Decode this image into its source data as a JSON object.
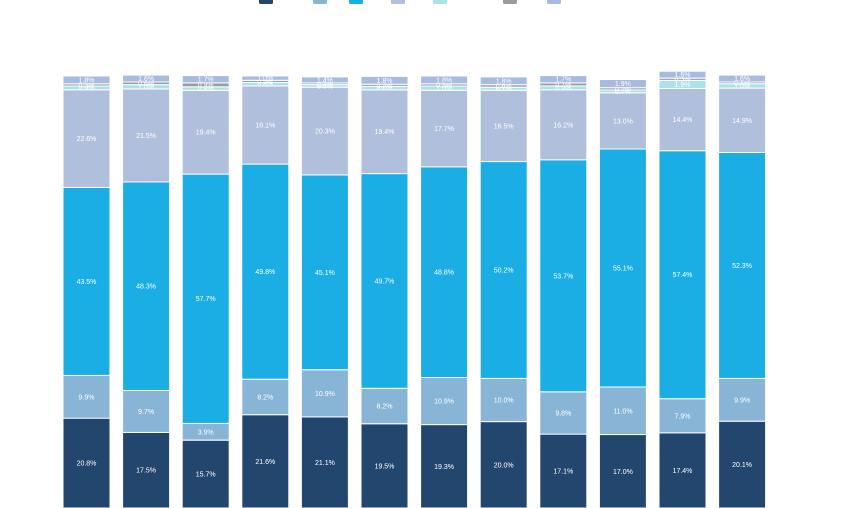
{
  "chart_data": {
    "type": "bar",
    "stacked": true,
    "normalized": true,
    "title": "",
    "xlabel": "",
    "ylabel": "",
    "legend_position": "top",
    "grid": false,
    "categories": [
      "",
      "",
      "",
      "",
      "",
      "",
      "",
      "",
      "",
      "",
      "",
      ""
    ],
    "series": [
      {
        "name": "",
        "color": "#23466e",
        "values": [
          20.8,
          17.5,
          15.7,
          21.6,
          21.1,
          19.5,
          19.3,
          20.0,
          17.1,
          17.0,
          17.4,
          20.1
        ]
      },
      {
        "name": "",
        "color": "#88b4d6",
        "values": [
          9.9,
          9.7,
          3.9,
          8.2,
          10.9,
          8.2,
          10.9,
          10.0,
          9.8,
          11.0,
          7.9,
          9.9
        ]
      },
      {
        "name": "",
        "color": "#1aaee5",
        "values": [
          43.5,
          48.3,
          57.7,
          49.8,
          45.1,
          49.7,
          48.8,
          50.2,
          53.7,
          55.1,
          57.4,
          52.3
        ]
      },
      {
        "name": "",
        "color": "#b0bfdb",
        "values": [
          22.6,
          21.5,
          19.4,
          18.1,
          20.3,
          19.4,
          17.7,
          16.5,
          16.2,
          13.0,
          14.4,
          14.9
        ]
      },
      {
        "name": "",
        "color": "#a9e1ec",
        "values": [
          0.9,
          1.0,
          0.8,
          0.8,
          0.6,
          0.8,
          1.0,
          0.7,
          0.9,
          0.7,
          1.9,
          1.0
        ]
      },
      {
        "name": "",
        "color": "#9c9c9c",
        "values": [
          0.5,
          0.6,
          0.9,
          0.5,
          0.4,
          0.5,
          0.5,
          0.6,
          0.7,
          0.5,
          0.5,
          0.4
        ]
      },
      {
        "name": "",
        "color": "#a7badf",
        "values": [
          1.8,
          1.6,
          1.7,
          1.0,
          1.4,
          1.8,
          1.8,
          1.8,
          1.7,
          1.9,
          1.6,
          1.6
        ]
      }
    ]
  }
}
